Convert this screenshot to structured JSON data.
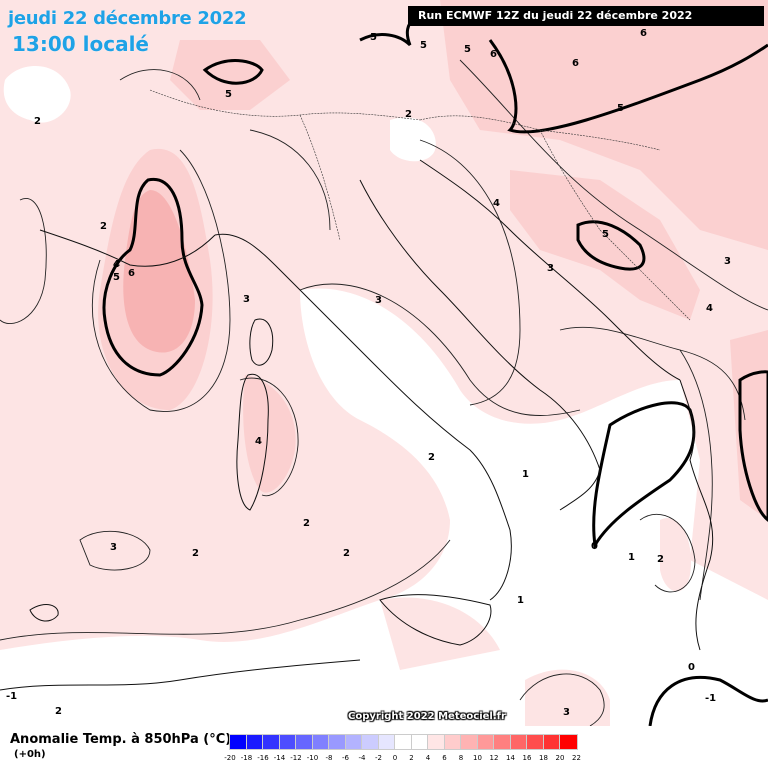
{
  "header": {
    "date": "jeudi 22 décembre 2022",
    "time": "13:00 localé",
    "run": "Run ECMWF 12Z du jeudi 22 décembre 2022"
  },
  "copyright": "Copyright 2022 Meteociel.fr",
  "legend": {
    "title": "Anomalie Temp. à 850hPa (°C)",
    "subtitle": "(+0h)",
    "colors": [
      "#0000ff",
      "#1a1aff",
      "#3333ff",
      "#4d4dff",
      "#6666ff",
      "#8080ff",
      "#9999ff",
      "#b3b3ff",
      "#ccccff",
      "#e6e6ff",
      "#ffffff",
      "#ffffff",
      "#ffe6e6",
      "#ffcccc",
      "#ffb3b3",
      "#ff9999",
      "#ff8080",
      "#ff6666",
      "#ff4d4d",
      "#ff3333",
      "#ff0000"
    ],
    "ticks": [
      "-20",
      "-18",
      "-16",
      "-14",
      "-12",
      "-10",
      "-8",
      "-6",
      "-4",
      "-2",
      "0",
      "2",
      "4",
      "6",
      "8",
      "10",
      "12",
      "14",
      "16",
      "18",
      "20",
      "22"
    ]
  },
  "map_labels": [
    "5",
    "5",
    "5",
    "5",
    "6",
    "6",
    "6",
    "5",
    "2",
    "2",
    "4",
    "5",
    "6",
    "2",
    "3",
    "3",
    "4",
    "4",
    "5",
    "3",
    "3",
    "4",
    "2",
    "1",
    "2",
    "2",
    "3",
    "2",
    "0",
    "1",
    "2",
    "1",
    "0",
    "-1",
    "-1",
    "2",
    "3"
  ]
}
